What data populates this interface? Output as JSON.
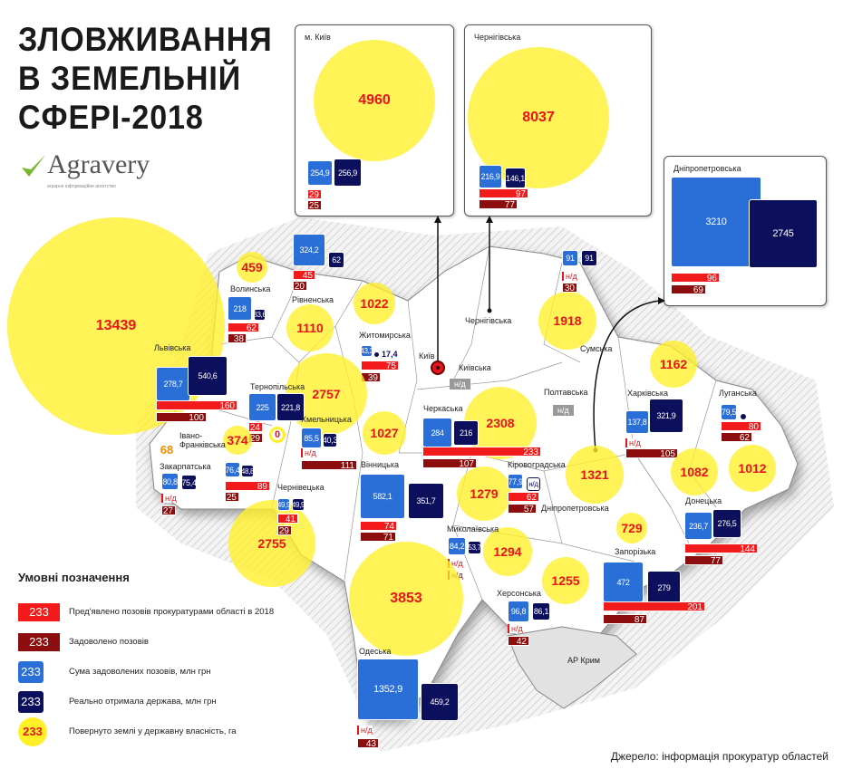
{
  "title": [
    "ЗЛОВЖИВАННЯ",
    "В ЗЕМЕЛЬНІЙ",
    "СФЕРІ-2018"
  ],
  "logo": {
    "name": "Agravery",
    "tagline": "аграрне інформаційне агентство"
  },
  "colors": {
    "claims": "#f21a1a",
    "satisfied": "#8c0d0d",
    "sum": "#2a6fd8",
    "received": "#0c0f5c",
    "land": "#fff028"
  },
  "nd": "н/д",
  "crimea": "АР Крим",
  "kyiv_city_label": "Київ",
  "regions": [
    {
      "id": "lviv",
      "name": "Львівська",
      "land": "13439",
      "sum": "278,7",
      "received": "540,6",
      "claims": "160",
      "satisfied": "100"
    },
    {
      "id": "volyn",
      "name": "Волинська",
      "land": "459",
      "sum": "218",
      "received": "33,6",
      "claims": "62",
      "satisfied": "38"
    },
    {
      "id": "rivne",
      "name": "Рівненська",
      "land": "1110",
      "sum": "324,2",
      "received": "62",
      "claims": "45",
      "satisfied": "20"
    },
    {
      "id": "zhytomyr",
      "name": "Житомирська",
      "land": "1022",
      "sum": "43,3",
      "received": "17,4",
      "claims": "75",
      "satisfied": "39"
    },
    {
      "id": "kyivcity",
      "name": "м. Київ",
      "land": "4960",
      "sum": "254,9",
      "received": "256,9",
      "claims": "29",
      "satisfied": "25"
    },
    {
      "id": "chernihiv",
      "name": "Чернігівська",
      "land": "8037",
      "sum": "216,9",
      "received": "146,1",
      "claims": "97",
      "satisfied": "77"
    },
    {
      "id": "kyivska",
      "name": "Київська",
      "land": null,
      "sum": null,
      "received": null,
      "claims": null,
      "satisfied": null,
      "status": "н/д"
    },
    {
      "id": "sumy",
      "name": "Сумська",
      "land": "1918",
      "sum": "91",
      "received": "91",
      "claims": "н/д",
      "satisfied": "30"
    },
    {
      "id": "poltava",
      "name": "Полтавська",
      "land": null,
      "sum": null,
      "received": null,
      "claims": null,
      "satisfied": null,
      "status": "н/д"
    },
    {
      "id": "kharkiv",
      "name": "Харківська",
      "land": "1162",
      "sum": "137,8",
      "received": "321,9",
      "claims": "н/д",
      "satisfied": "105"
    },
    {
      "id": "luhansk",
      "name": "Луганська",
      "land": "1012",
      "sum": "79,5",
      "received": "",
      "claims": "80",
      "satisfied": "62"
    },
    {
      "id": "ternopil",
      "name": "Тернопільська",
      "land": "2757",
      "sum": "225",
      "received": "221,8",
      "claims": "24",
      "satisfied": "29",
      "extra_land": "0"
    },
    {
      "id": "khmelnytskyi",
      "name": "Хмельницька",
      "land": null,
      "sum": "85,5",
      "received": "40,3",
      "claims": "н/д",
      "satisfied": "111"
    },
    {
      "id": "vinnytsia",
      "name": "Вінницька",
      "land": "1027",
      "sum": "582,1",
      "received": "351,7",
      "claims": "74",
      "satisfied": "71"
    },
    {
      "id": "ivanofrankivsk",
      "name": "Івано-Франківська",
      "land": "374",
      "sum": "76,4",
      "received": "48,8",
      "claims": "89",
      "satisfied": "25"
    },
    {
      "id": "zakarpattia",
      "name": "Закарпатська",
      "land": "68",
      "sum": "80,8",
      "received": "75,4",
      "claims": "н/д",
      "satisfied": "27"
    },
    {
      "id": "chernivtsi",
      "name": "Чернівецька",
      "land": "2755",
      "sum": "49,9",
      "received": "49,9",
      "claims": "41",
      "satisfied": "29"
    },
    {
      "id": "cherkasy",
      "name": "Черкаська",
      "land": "2308",
      "sum": "284",
      "received": "216",
      "claims": "233",
      "satisfied": "107"
    },
    {
      "id": "kirovohrad",
      "name": "Кіровоградська",
      "land": "1279",
      "sum": "77,9",
      "received": "н/д",
      "claims": "62",
      "satisfied": "57"
    },
    {
      "id": "dnipro",
      "name": "Дніпропетровська",
      "land": "1321",
      "sum": "3210",
      "received": "2745",
      "claims": "96",
      "satisfied": "69"
    },
    {
      "id": "mykolaiv",
      "name": "Миколаївська",
      "land": "1294",
      "sum": "84,2",
      "received": "53,7",
      "claims": "н/д",
      "satisfied": "н/д"
    },
    {
      "id": "odesa",
      "name": "Одеська",
      "land": "3853",
      "sum": "1352,9",
      "received": "459,2",
      "claims": "н/д",
      "satisfied": "43"
    },
    {
      "id": "kherson",
      "name": "Херсонська",
      "land": "1255",
      "sum": "96,8",
      "received": "86,1",
      "claims": "н/д",
      "satisfied": "42"
    },
    {
      "id": "zaporizhzhia",
      "name": "Запорізька",
      "land": "729",
      "sum": "472",
      "received": "279",
      "claims": "201",
      "satisfied": "87"
    },
    {
      "id": "donetsk",
      "name": "Донецька",
      "land": "1082",
      "sum": "236,7",
      "received": "276,5",
      "claims": "144",
      "satisfied": "77"
    }
  ],
  "legend": {
    "title": "Умовні позначення",
    "sample": "233",
    "items": [
      {
        "key": "claims",
        "label": "Пред'явлено позовів прокуратурами області в 2018"
      },
      {
        "key": "satisfied",
        "label": "Задоволено  позовів"
      },
      {
        "key": "sum",
        "label": "Сума задоволених позовів, млн грн"
      },
      {
        "key": "received",
        "label": "Реально отримала держава, млн грн"
      },
      {
        "key": "land",
        "label": "Повернуто землі у державну власність, га"
      }
    ]
  },
  "source": "Джерело: інформація прокуратур областей"
}
